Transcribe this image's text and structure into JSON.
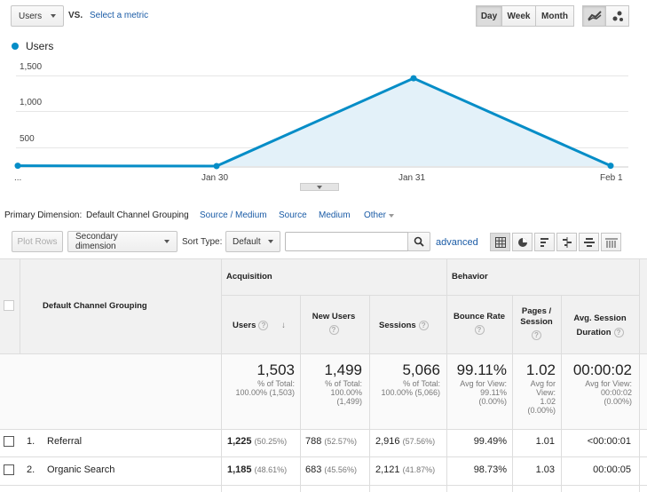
{
  "toolbar": {
    "metric_select": "Users",
    "vs_label": "VS.",
    "select_metric_link": "Select a metric",
    "period_buttons": [
      "Day",
      "Week",
      "Month"
    ],
    "active_period": "Day"
  },
  "chart": {
    "legend_label": "Users",
    "y_ticks": [
      "1,500",
      "1,000",
      "500"
    ],
    "x_ticks": [
      "...",
      "Jan 30",
      "Jan 31",
      "Feb 1"
    ]
  },
  "chart_data": {
    "type": "area",
    "series": [
      {
        "name": "Users",
        "values": [
          5,
          0,
          1430,
          5
        ]
      }
    ],
    "x": [
      "...",
      "Jan 30",
      "Jan 31",
      "Feb 1"
    ],
    "ylim": [
      0,
      1750
    ],
    "color": "#058dc7",
    "fill": "#e3f1f9",
    "grid": true,
    "legend": "top-left"
  },
  "primary_dimension": {
    "label": "Primary Dimension:",
    "active": "Default Channel Grouping",
    "links": [
      "Source / Medium",
      "Source",
      "Medium",
      "Other"
    ]
  },
  "controls": {
    "plot_rows": "Plot Rows",
    "secondary_dimension": "Secondary dimension",
    "sort_type_label": "Sort Type:",
    "sort_type_value": "Default",
    "search_value": "",
    "advanced_link": "advanced"
  },
  "table": {
    "dimension_header": "Default Channel Grouping",
    "group_acquisition": "Acquisition",
    "group_behavior": "Behavior",
    "columns": [
      "Users",
      "New Users",
      "Sessions",
      "Bounce Rate",
      "Pages / Session",
      "Avg. Session Duration"
    ],
    "totals": [
      {
        "value": "1,503",
        "sub1": "% of Total:",
        "sub2": "100.00% (1,503)",
        "sub3": ""
      },
      {
        "value": "1,499",
        "sub1": "% of Total:",
        "sub2": "100.00%",
        "sub3": "(1,499)"
      },
      {
        "value": "5,066",
        "sub1": "% of Total:",
        "sub2": "100.00% (5,066)",
        "sub3": ""
      },
      {
        "value": "99.11%",
        "sub1": "Avg for View:",
        "sub2": "99.11%",
        "sub3": "(0.00%)"
      },
      {
        "value": "1.02",
        "sub1": "Avg for",
        "sub2": "View:",
        "sub3": "1.02",
        "sub4": "(0.00%)"
      },
      {
        "value": "00:00:02",
        "sub1": "Avg for View:",
        "sub2": "00:00:02",
        "sub3": "(0.00%)"
      }
    ],
    "rows": [
      {
        "index": "1.",
        "name": "Referral",
        "users": "1,225",
        "users_pct": "(50.25%)",
        "new_users": "788",
        "new_users_pct": "(52.57%)",
        "sessions": "2,916",
        "sessions_pct": "(57.56%)",
        "bounce": "99.49%",
        "pages": "1.01",
        "duration": "<00:00:01"
      },
      {
        "index": "2.",
        "name": "Organic Search",
        "users": "1,185",
        "users_pct": "(48.61%)",
        "new_users": "683",
        "new_users_pct": "(45.56%)",
        "sessions": "2,121",
        "sessions_pct": "(41.87%)",
        "bounce": "98.73%",
        "pages": "1.03",
        "duration": "00:00:05"
      }
    ]
  }
}
